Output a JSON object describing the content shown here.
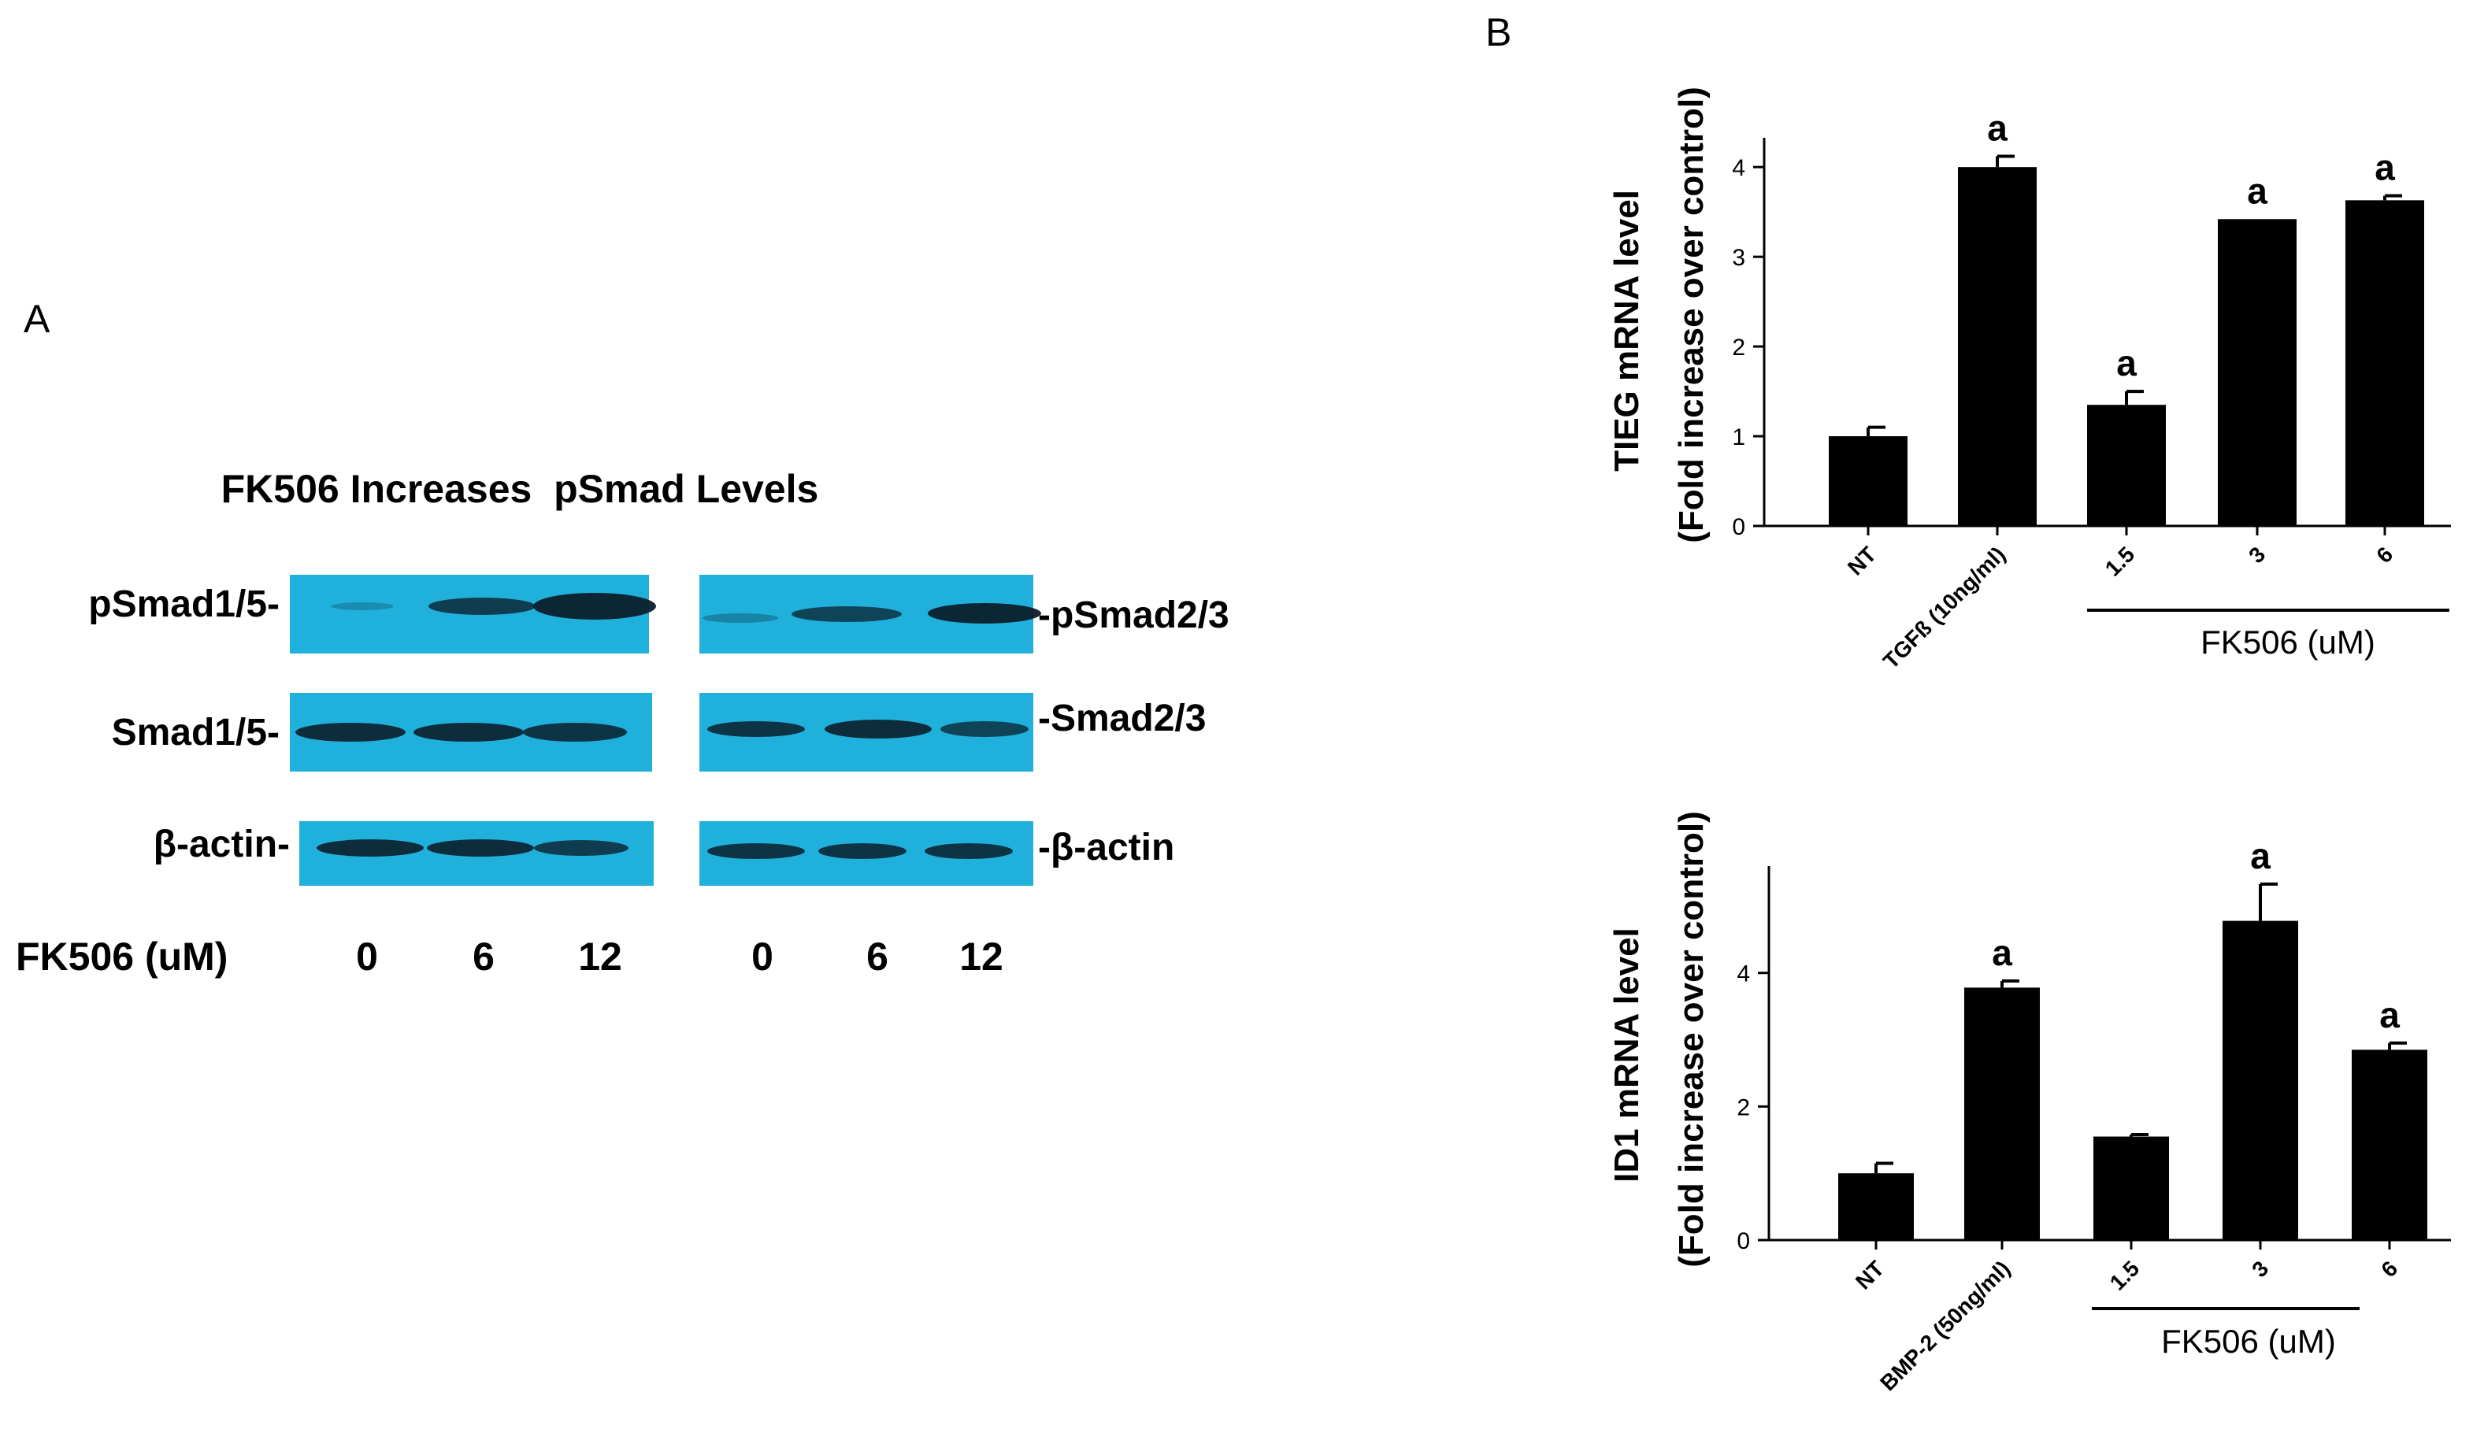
{
  "panels": {
    "A": {
      "letter": "A",
      "title": "FK506 Increases  pSmad Levels",
      "left_labels": [
        "pSmad1/5-",
        "Smad1/5-",
        "β-actin-"
      ],
      "right_labels": [
        "-pSmad2/3",
        "-Smad2/3",
        "-β-actin"
      ],
      "dose_label": "FK506 (uM)",
      "doses": [
        "0",
        "6",
        "12",
        "0",
        "6",
        "12"
      ],
      "blot_color": "#1fb0dc"
    },
    "B": {
      "letter": "B"
    }
  },
  "chart_data": [
    {
      "type": "bar",
      "ylabel_line1": "TIEG mRNA level",
      "ylabel_line2": "(Fold increase over control)",
      "categories": [
        "NT",
        "TGFß (10ng/ml)",
        "1.5",
        "3",
        "6"
      ],
      "values": [
        1.0,
        4.0,
        1.35,
        3.42,
        3.63
      ],
      "errors": [
        0.1,
        0.12,
        0.15,
        0.0,
        0.05
      ],
      "annotations": [
        "",
        "a",
        "a",
        "a",
        "a"
      ],
      "yticks": [
        0,
        1,
        2,
        3,
        4
      ],
      "ylim": [
        0,
        4.3
      ],
      "group_label": "FK506 (uM)",
      "bar_color": "#000000"
    },
    {
      "type": "bar",
      "ylabel_line1": "ID1 mRNA level",
      "ylabel_line2": "(Fold increase over control)",
      "categories": [
        "NT",
        "BMP-2 (50ng/ml)",
        "1.5",
        "3",
        "6"
      ],
      "values": [
        1.0,
        3.78,
        1.55,
        4.78,
        2.85
      ],
      "errors": [
        0.15,
        0.1,
        0.03,
        0.55,
        0.1
      ],
      "annotations": [
        "",
        "a",
        "",
        "a",
        "a"
      ],
      "yticks": [
        0,
        2,
        4
      ],
      "ylim": [
        0,
        5.6
      ],
      "group_label": "FK506 (uM)",
      "bar_color": "#000000"
    }
  ]
}
